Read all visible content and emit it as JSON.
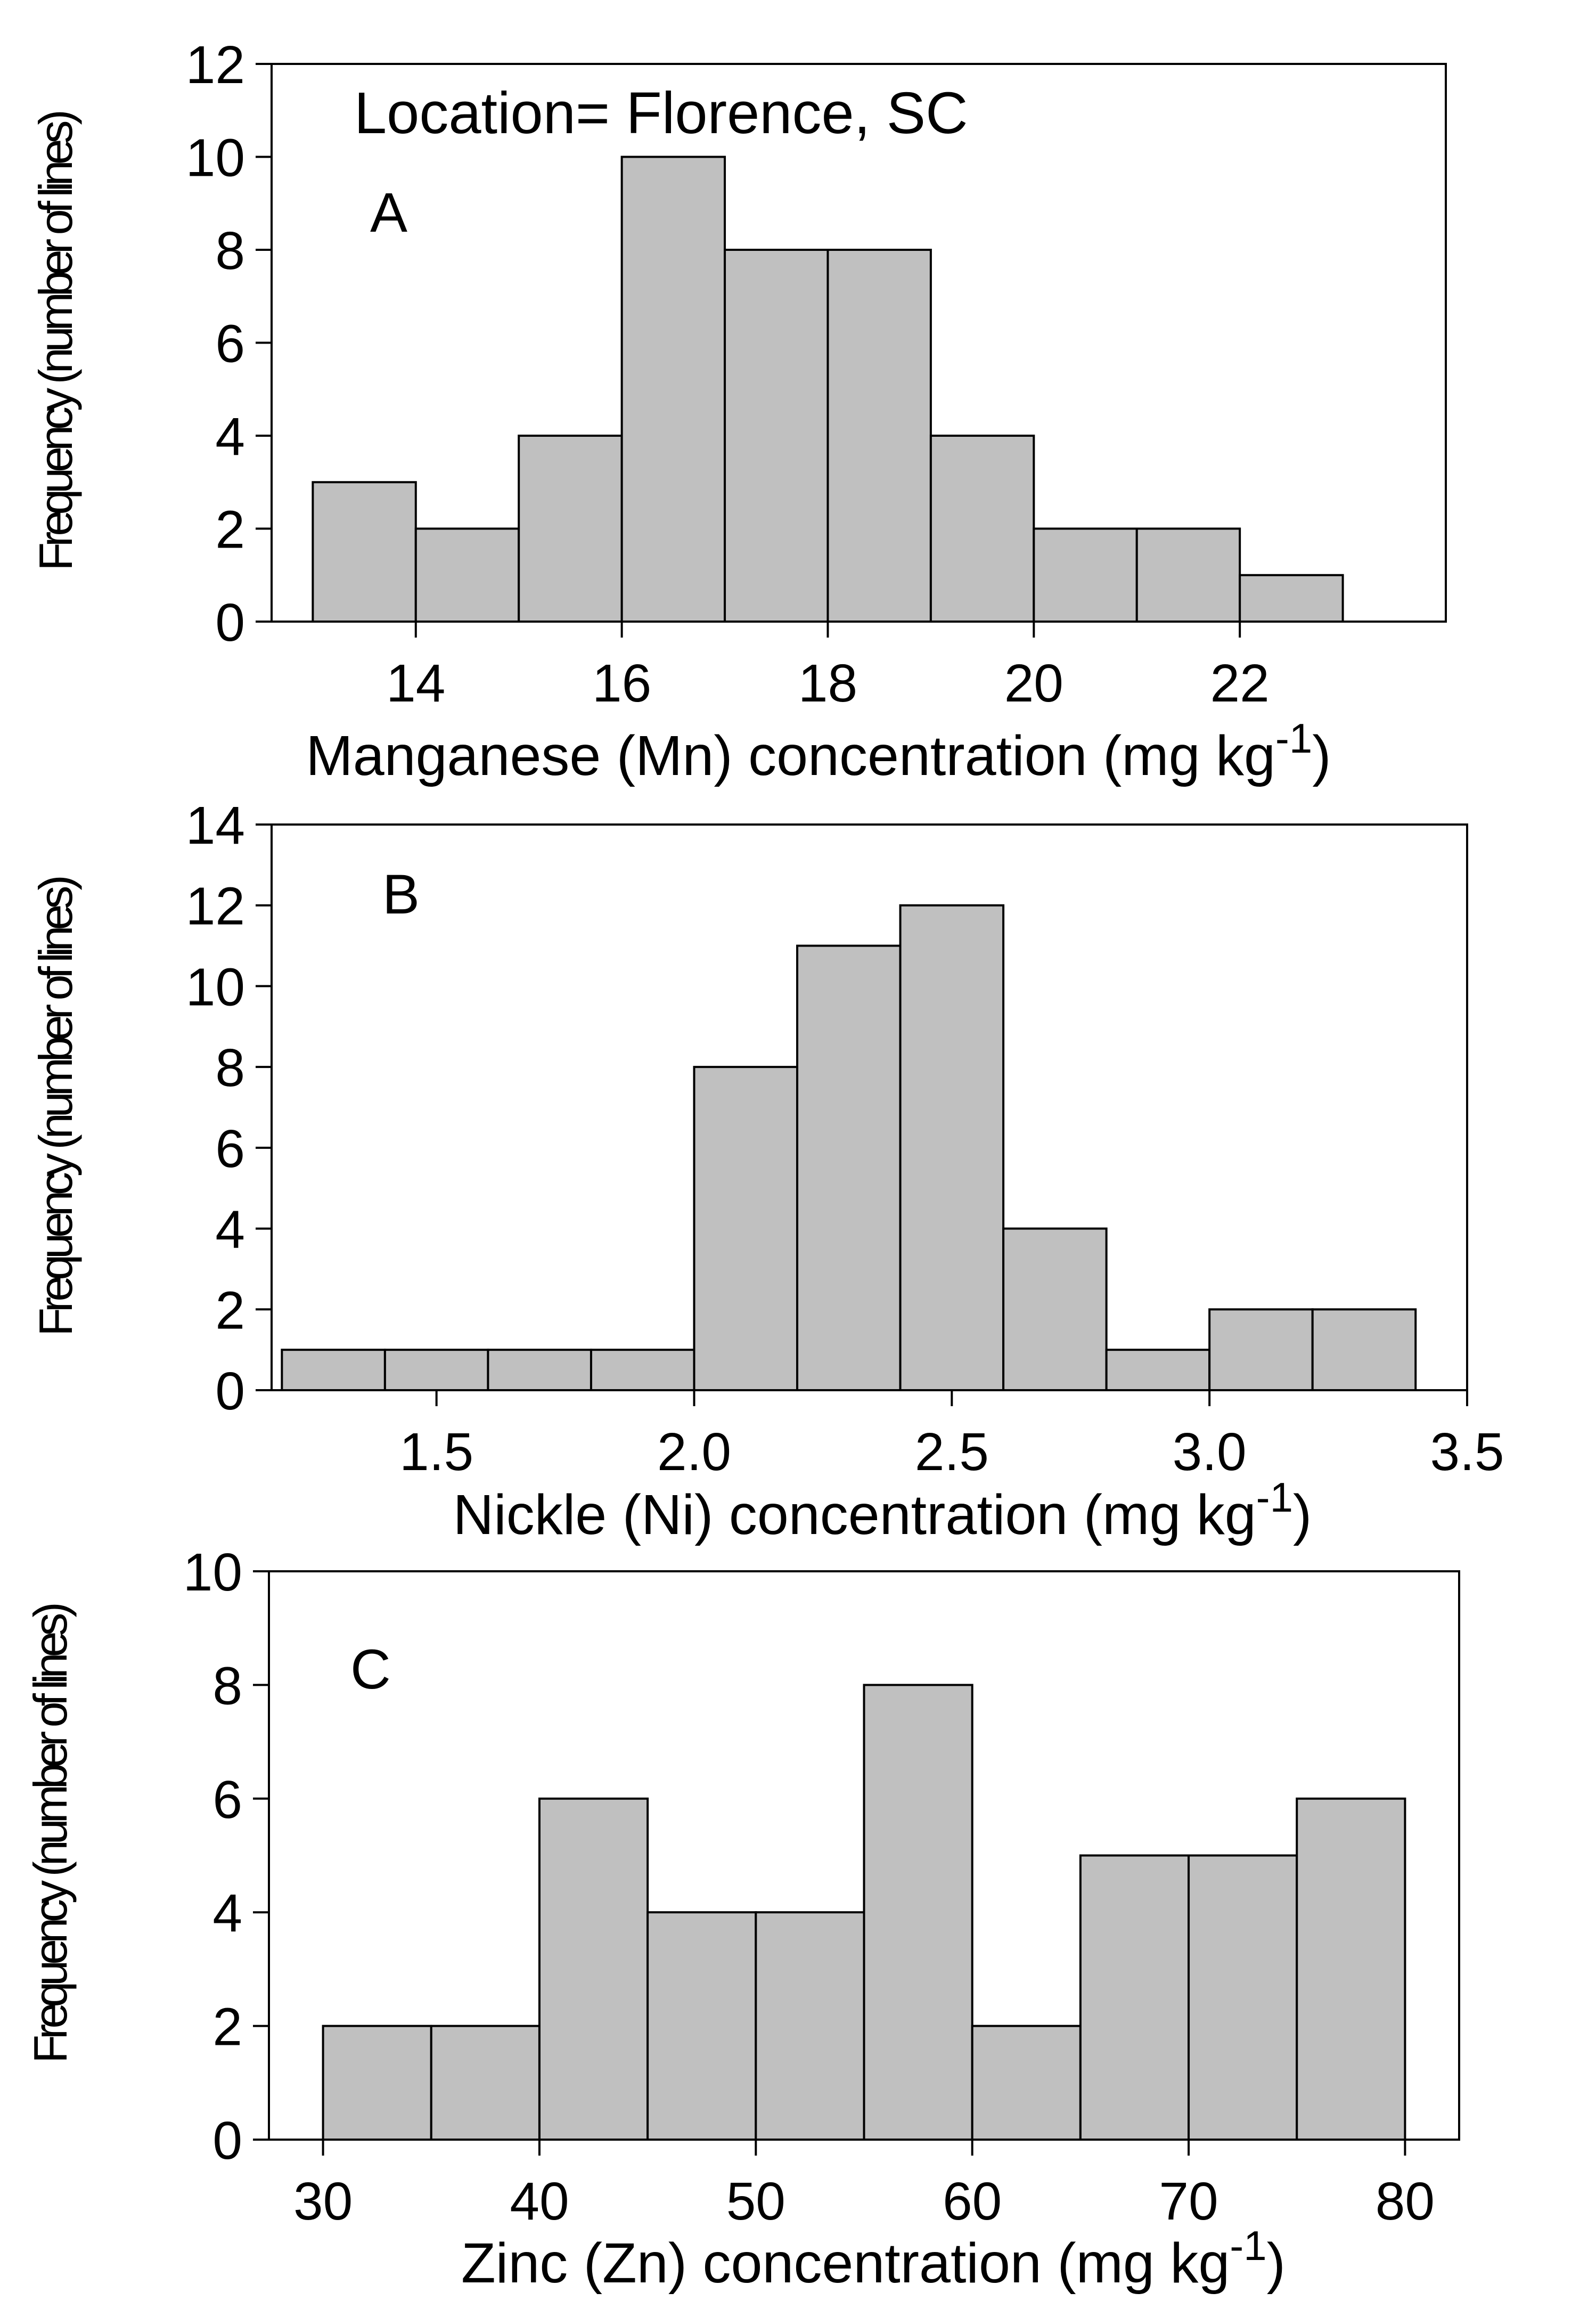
{
  "figure": {
    "location_label": "Location= Florence, SC"
  },
  "chart_data": [
    {
      "type": "bar",
      "panel_label": "A",
      "ylabel": "Frequency (number of lines)",
      "xlabel_main": "Manganese (Mn) concentration (mg kg",
      "xlabel_sup": "-1",
      "xlabel_close": ")",
      "xlim": [
        12.6,
        24.0
      ],
      "ylim": [
        0,
        12
      ],
      "xticks": [
        14,
        16,
        18,
        20,
        22
      ],
      "xtick_labels": [
        "14",
        "16",
        "18",
        "20",
        "22"
      ],
      "yticks": [
        0,
        2,
        4,
        6,
        8,
        10,
        12
      ],
      "ytick_labels": [
        "0",
        "2",
        "4",
        "6",
        "8",
        "10",
        "12"
      ],
      "bin_edges": [
        13,
        14,
        15,
        16,
        17,
        18,
        19,
        20,
        21,
        22,
        23
      ],
      "values": [
        3,
        2,
        4,
        10,
        8,
        8,
        4,
        2,
        2,
        1
      ],
      "bar_color": "#c0c0c0"
    },
    {
      "type": "bar",
      "panel_label": "B",
      "ylabel": "Frequency (number of lines)",
      "xlabel_main": "Nickle (Ni) concentration (mg kg",
      "xlabel_sup": "-1",
      "xlabel_close": ")",
      "xlim": [
        1.18,
        3.5
      ],
      "ylim": [
        0,
        14
      ],
      "xticks": [
        1.5,
        2.0,
        2.5,
        3.0,
        3.5
      ],
      "xtick_labels": [
        "1.5",
        "2.0",
        "2.5",
        "3.0",
        "3.5"
      ],
      "yticks": [
        0,
        2,
        4,
        6,
        8,
        10,
        12,
        14
      ],
      "ytick_labels": [
        "0",
        "2",
        "4",
        "6",
        "8",
        "10",
        "12",
        "14"
      ],
      "bin_edges": [
        1.2,
        1.4,
        1.6,
        1.8,
        2.0,
        2.2,
        2.4,
        2.6,
        2.8,
        3.0,
        3.2,
        3.4
      ],
      "values": [
        1,
        1,
        1,
        1,
        8,
        11,
        12,
        4,
        1,
        2,
        2
      ],
      "bar_color": "#c0c0c0"
    },
    {
      "type": "bar",
      "panel_label": "C",
      "ylabel": "Frequency (number of lines)",
      "xlabel_main": "Zinc (Zn) concentration (mg kg",
      "xlabel_sup": "-1",
      "xlabel_close": ")",
      "xlim": [
        27.5,
        82.5
      ],
      "ylim": [
        0,
        10
      ],
      "xticks": [
        30,
        40,
        50,
        60,
        70,
        80
      ],
      "xtick_labels": [
        "30",
        "40",
        "50",
        "60",
        "70",
        "80"
      ],
      "yticks": [
        0,
        2,
        4,
        6,
        8,
        10
      ],
      "ytick_labels": [
        "0",
        "2",
        "4",
        "6",
        "8",
        "10"
      ],
      "bin_edges": [
        30,
        35,
        40,
        45,
        50,
        55,
        60,
        65,
        70,
        75,
        80
      ],
      "values": [
        2,
        2,
        6,
        4,
        4,
        8,
        2,
        5,
        5,
        6
      ],
      "bar_color": "#c0c0c0"
    }
  ]
}
